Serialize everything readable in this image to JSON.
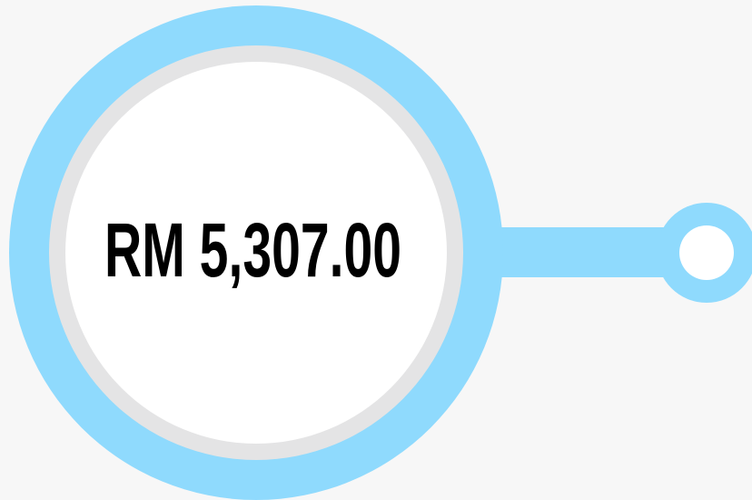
{
  "label": "RM 5,307.00"
}
